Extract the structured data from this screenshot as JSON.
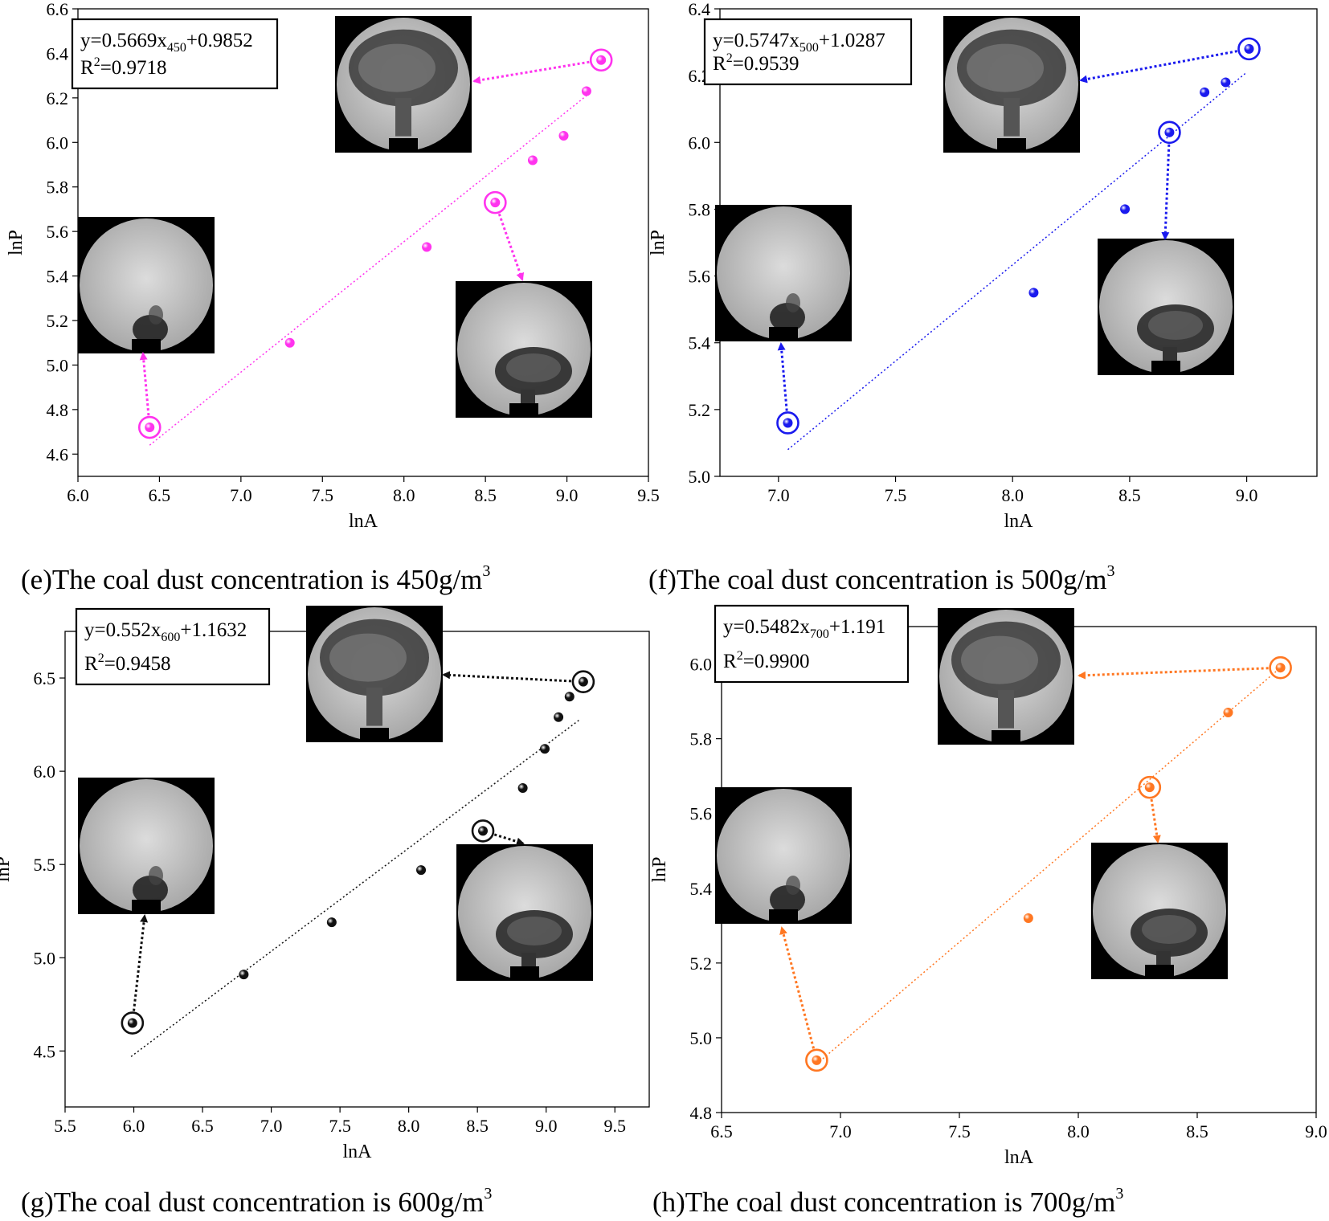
{
  "chart_data": [
    {
      "type": "scatter",
      "xlabel": "lnA",
      "ylabel": "lnP",
      "xlim": [
        6.0,
        9.5
      ],
      "ylim": [
        4.5,
        6.6
      ],
      "xticks": [
        "6.0",
        "6.5",
        "7.0",
        "7.5",
        "8.0",
        "8.5",
        "9.0",
        "9.5"
      ],
      "yticks": [
        "4.6",
        "4.8",
        "5.0",
        "5.2",
        "5.4",
        "5.6",
        "5.8",
        "6.0",
        "6.2",
        "6.4",
        "6.6"
      ],
      "color": "#ff33ee",
      "points": {
        "x": [
          6.44,
          7.3,
          8.14,
          8.56,
          8.79,
          8.98,
          9.12,
          9.21
        ],
        "y": [
          4.72,
          5.1,
          5.53,
          5.73,
          5.92,
          6.03,
          6.23,
          6.37
        ]
      },
      "circled": [
        0,
        3,
        7
      ],
      "fit": {
        "x": [
          6.44,
          9.12
        ],
        "y": [
          4.64,
          6.21
        ]
      },
      "equation": {
        "pre": "y=0.5669x",
        "sub": "450",
        "post": "+0.9852",
        "r2": "=0.9718"
      },
      "caption": {
        "text": "(e)The coal dust concentration is 450g/m",
        "sup": "3"
      }
    },
    {
      "type": "scatter",
      "xlabel": "lnA",
      "ylabel": "lnP",
      "xlim": [
        6.75,
        9.3
      ],
      "ylim": [
        5.0,
        6.4
      ],
      "xticks": [
        "7.0",
        "7.5",
        "8.0",
        "8.5",
        "9.0"
      ],
      "yticks": [
        "5.0",
        "5.2",
        "5.4",
        "5.6",
        "5.8",
        "6.0",
        "6.2",
        "6.4"
      ],
      "color": "#1a1aee",
      "points": {
        "x": [
          7.04,
          8.09,
          8.48,
          8.67,
          8.82,
          8.91,
          9.01
        ],
        "y": [
          5.16,
          5.55,
          5.8,
          6.03,
          6.15,
          6.18,
          6.28
        ]
      },
      "circled": [
        0,
        3,
        6
      ],
      "fit": {
        "x": [
          7.04,
          9.0
        ],
        "y": [
          5.08,
          6.21
        ]
      },
      "equation": {
        "pre": "y=0.5747x",
        "sub": "500",
        "post": "+1.0287",
        "r2": "=0.9539"
      },
      "caption": {
        "text": "(f)The coal dust concentration is 500g/m",
        "sup": "3"
      }
    },
    {
      "type": "scatter",
      "xlabel": "lnA",
      "ylabel": "lnP",
      "xlim": [
        5.5,
        9.75
      ],
      "ylim": [
        4.2,
        6.75
      ],
      "xticks": [
        "5.5",
        "6.0",
        "6.5",
        "7.0",
        "7.5",
        "8.0",
        "8.5",
        "9.0",
        "9.5"
      ],
      "yticks": [
        "4.5",
        "5.0",
        "5.5",
        "6.0",
        "6.5"
      ],
      "color": "#111111",
      "points": {
        "x": [
          5.99,
          6.8,
          7.44,
          8.09,
          8.54,
          8.83,
          8.99,
          9.09,
          9.17,
          9.27
        ],
        "y": [
          4.65,
          4.91,
          5.19,
          5.47,
          5.68,
          5.91,
          6.12,
          6.29,
          6.4,
          6.48
        ]
      },
      "circled": [
        0,
        4,
        9
      ],
      "fit": {
        "x": [
          5.98,
          9.25
        ],
        "y": [
          4.47,
          6.28
        ]
      },
      "equation": {
        "pre": "y=0.552x",
        "sub": "600",
        "post": "+1.1632",
        "r2": "=0.9458"
      },
      "caption": {
        "text": "(g)The coal dust concentration is 600g/m",
        "sup": "3"
      }
    },
    {
      "type": "scatter",
      "xlabel": "lnA",
      "ylabel": "lnP",
      "xlim": [
        6.5,
        9.0
      ],
      "ylim": [
        4.8,
        6.1
      ],
      "xticks": [
        "6.5",
        "7.0",
        "7.5",
        "8.0",
        "8.5",
        "9.0"
      ],
      "yticks": [
        "4.8",
        "5.0",
        "5.2",
        "5.4",
        "5.6",
        "5.8",
        "6.0"
      ],
      "color": "#ff7722",
      "points": {
        "x": [
          6.9,
          7.79,
          8.3,
          8.63,
          8.85
        ],
        "y": [
          4.94,
          5.32,
          5.67,
          5.87,
          5.99
        ]
      },
      "circled": [
        0,
        2,
        4
      ],
      "fit": {
        "x": [
          6.9,
          8.85
        ],
        "y": [
          4.93,
          5.99
        ]
      },
      "equation": {
        "pre": "y=0.5482x",
        "sub": "700",
        "post": "+1.191",
        "r2": "=0.9900"
      },
      "caption": {
        "text": "(h)The coal dust concentration is 700g/m",
        "sup": "3"
      }
    }
  ]
}
